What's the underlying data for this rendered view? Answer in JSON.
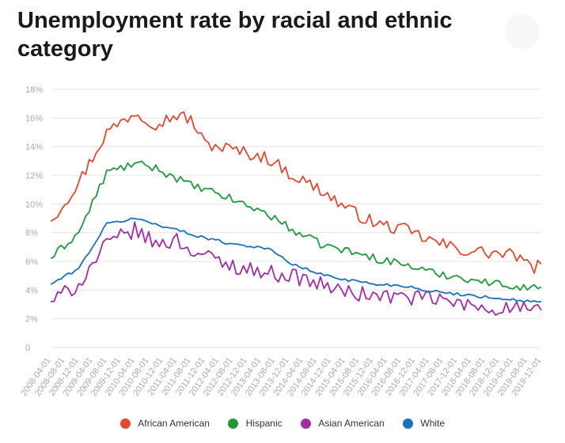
{
  "header": {
    "title": "Unemployment rate by racial and ethnic category"
  },
  "chart_data": {
    "type": "line",
    "title": "Unemployment rate by racial and ethnic category",
    "xlabel": "",
    "ylabel": "",
    "ylim": [
      0,
      18
    ],
    "y_ticks": [
      0,
      2,
      4,
      6,
      8,
      10,
      12,
      14,
      16,
      18
    ],
    "y_tick_labels": [
      "0",
      "2%",
      "4%",
      "6%",
      "8%",
      "10%",
      "12%",
      "14%",
      "16%",
      "18%"
    ],
    "x_tick_labels": [
      "2008-04-01",
      "2008-08-01",
      "2008-12-01",
      "2009-04-01",
      "2009-08-01",
      "2009-12-01",
      "2010-04-01",
      "2010-08-01",
      "2010-12-01",
      "2011-04-01",
      "2011-08-01",
      "2011-12-01",
      "2012-04-01",
      "2012-08-01",
      "2012-12-01",
      "2013-04-01",
      "2013-08-01",
      "2013-12-01",
      "2014-04-01",
      "2014-08-01",
      "2014-12-01",
      "2015-04-01",
      "2015-08-01",
      "2015-12-01",
      "2016-04-01",
      "2016-08-01",
      "2016-12-01",
      "2017-04-01",
      "2017-08-01",
      "2017-12-01",
      "2018-04-01",
      "2018-08-01",
      "2018-12-01",
      "2019-04-01",
      "2019-08-01",
      "2019-12-01"
    ],
    "start_month": "2008-04",
    "end_month": "2019-12",
    "grid": true,
    "legend_position": "bottom",
    "series": [
      {
        "name": "African American",
        "color": "#e2492f",
        "x": [
          "2008-04",
          "2008-12",
          "2009-08",
          "2010-04",
          "2010-10",
          "2011-04",
          "2011-08",
          "2011-12",
          "2012-06",
          "2013-06",
          "2014-01",
          "2014-09",
          "2015-05",
          "2016-01",
          "2016-09",
          "2017-05",
          "2018-01",
          "2018-09",
          "2019-05",
          "2019-09",
          "2019-12"
        ],
        "y": [
          8.8,
          11.5,
          15.0,
          16.4,
          15.6,
          16.2,
          15.9,
          14.2,
          13.9,
          13.2,
          12.0,
          11.0,
          9.6,
          8.6,
          8.2,
          7.4,
          6.8,
          6.6,
          6.4,
          5.5,
          5.8
        ]
      },
      {
        "name": "Hispanic",
        "color": "#1e9a3a",
        "x": [
          "2008-04",
          "2008-12",
          "2009-08",
          "2010-04",
          "2010-10",
          "2011-04",
          "2011-08",
          "2012-06",
          "2013-06",
          "2014-01",
          "2014-09",
          "2015-05",
          "2016-01",
          "2016-09",
          "2017-05",
          "2018-01",
          "2018-09",
          "2019-05",
          "2019-09",
          "2019-12"
        ],
        "y": [
          6.2,
          8.0,
          12.2,
          12.8,
          12.5,
          11.8,
          11.3,
          10.5,
          9.3,
          8.2,
          7.2,
          6.7,
          6.2,
          5.8,
          5.2,
          4.9,
          4.5,
          4.3,
          4.1,
          4.2
        ]
      },
      {
        "name": "Asian American",
        "color": "#a32ba8",
        "x": [
          "2008-04",
          "2008-12",
          "2009-08",
          "2010-04",
          "2010-10",
          "2011-04",
          "2011-08",
          "2012-06",
          "2013-06",
          "2014-01",
          "2014-09",
          "2015-05",
          "2016-01",
          "2016-09",
          "2017-05",
          "2018-01",
          "2018-09",
          "2019-05",
          "2019-09",
          "2019-12"
        ],
        "y": [
          3.2,
          4.4,
          7.2,
          8.2,
          7.2,
          7.5,
          6.8,
          5.8,
          5.2,
          5.0,
          4.4,
          3.8,
          3.6,
          3.5,
          3.4,
          3.0,
          2.7,
          2.8,
          2.5,
          2.6
        ]
      },
      {
        "name": "White",
        "color": "#1b6fbd",
        "x": [
          "2008-04",
          "2008-12",
          "2009-08",
          "2010-04",
          "2010-10",
          "2011-04",
          "2011-08",
          "2012-06",
          "2013-06",
          "2014-01",
          "2014-09",
          "2015-05",
          "2016-01",
          "2016-09",
          "2017-05",
          "2018-01",
          "2018-09",
          "2019-05",
          "2019-09",
          "2019-12"
        ],
        "y": [
          4.4,
          5.5,
          8.6,
          9.0,
          8.6,
          8.2,
          7.9,
          7.3,
          6.9,
          5.8,
          5.1,
          4.7,
          4.4,
          4.3,
          3.9,
          3.7,
          3.5,
          3.3,
          3.2,
          3.2
        ]
      }
    ]
  },
  "legend": [
    {
      "label": "African American",
      "color": "#e2492f"
    },
    {
      "label": "Hispanic",
      "color": "#1e9a3a"
    },
    {
      "label": "Asian American",
      "color": "#a32ba8"
    },
    {
      "label": "White",
      "color": "#1b6fbd"
    }
  ]
}
